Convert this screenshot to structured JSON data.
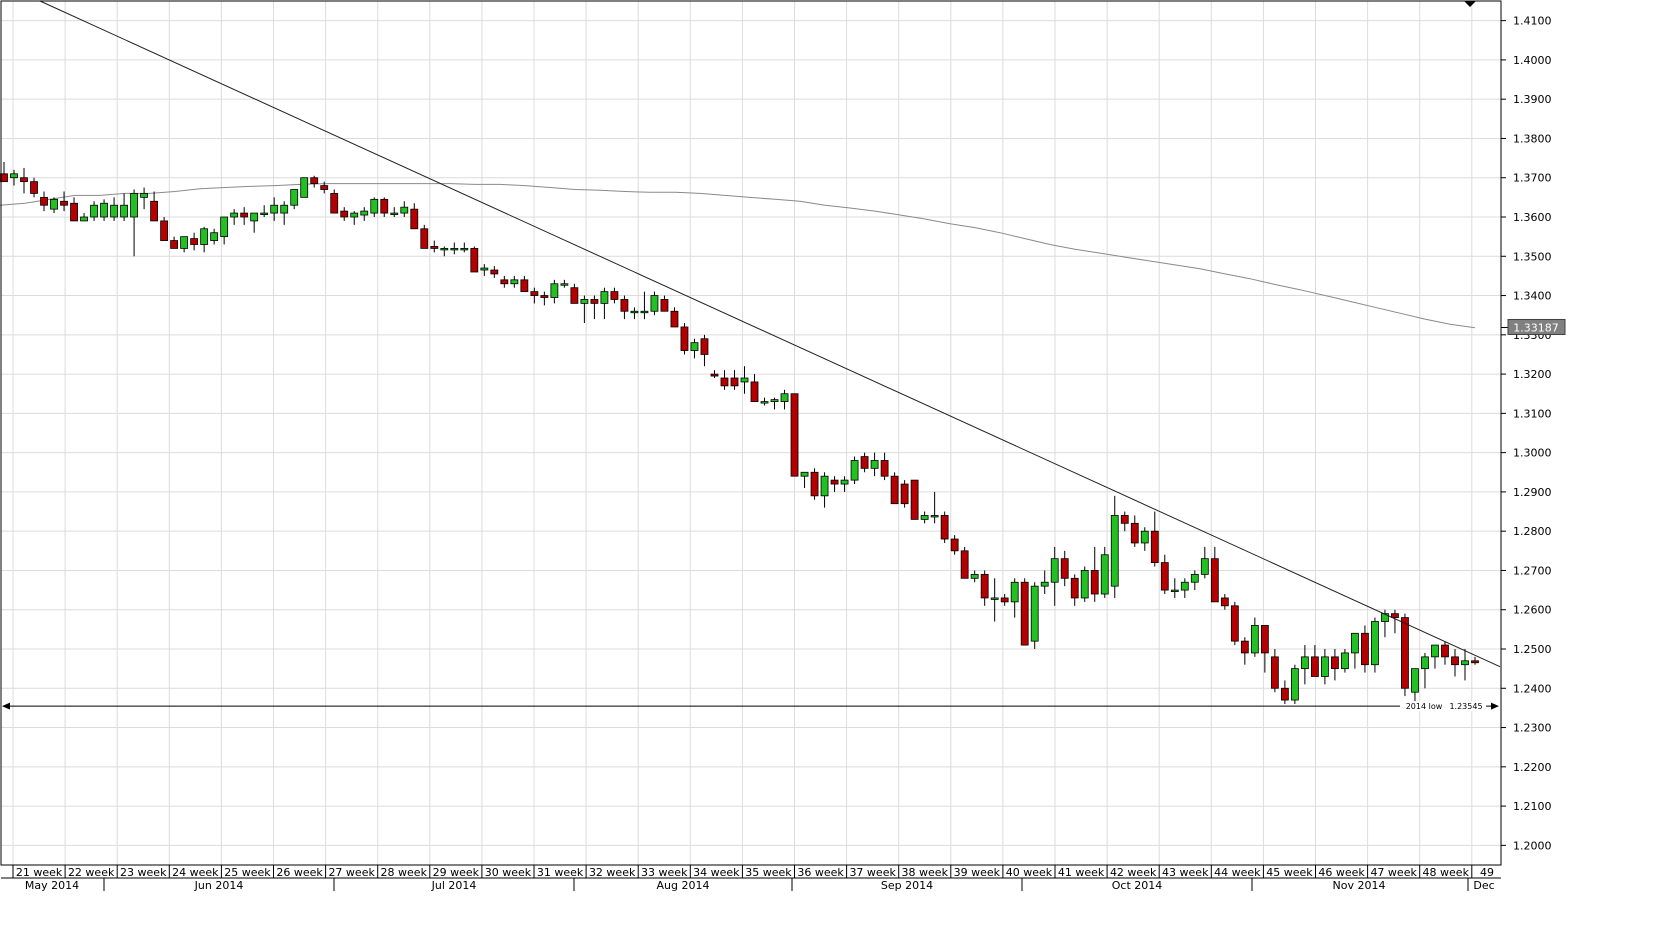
{
  "chart_data": {
    "type": "candlestick",
    "timeframe": "daily",
    "ylim": [
      1.195,
      1.415
    ],
    "yticks": [
      1.41,
      1.4,
      1.39,
      1.38,
      1.37,
      1.36,
      1.35,
      1.34,
      1.33,
      1.32,
      1.31,
      1.3,
      1.29,
      1.28,
      1.27,
      1.26,
      1.25,
      1.24,
      1.23,
      1.22,
      1.21,
      1.2
    ],
    "ytick_labels": [
      "1.4100",
      "1.4000",
      "1.3900",
      "1.3800",
      "1.3700",
      "1.3600",
      "1.3500",
      "1.3400",
      "1.3300",
      "1.3200",
      "1.3100",
      "1.3000",
      "1.2900",
      "1.2800",
      "1.2700",
      "1.2600",
      "1.2500",
      "1.2400",
      "1.2300",
      "1.2200",
      "1.2100",
      "1.2000"
    ],
    "week_labels": [
      "21 week",
      "22 week",
      "23 week",
      "24 week",
      "25 week",
      "26 week",
      "27 week",
      "28 week",
      "29 week",
      "30 week",
      "31 week",
      "32 week",
      "33 week",
      "34 week",
      "35 week",
      "36 week",
      "37 week",
      "38 week",
      "39 week",
      "40 week",
      "41 week",
      "42 week",
      "43 week",
      "44 week",
      "45 week",
      "46 week",
      "47 week",
      "48 week",
      "49"
    ],
    "month_labels": [
      "May 2014",
      "Jun 2014",
      "Jul 2014",
      "Aug 2014",
      "Sep 2014",
      "Oct 2014",
      "Nov 2014",
      "Dec"
    ],
    "candles": [
      [
        1.371,
        1.374,
        1.369,
        1.369
      ],
      [
        1.37,
        1.372,
        1.368,
        1.371
      ],
      [
        1.37,
        1.3725,
        1.366,
        1.369
      ],
      [
        1.369,
        1.37,
        1.365,
        1.366
      ],
      [
        1.365,
        1.3665,
        1.3615,
        1.363
      ],
      [
        1.362,
        1.365,
        1.361,
        1.3645
      ],
      [
        1.364,
        1.3665,
        1.3615,
        1.363
      ],
      [
        1.3635,
        1.365,
        1.359,
        1.359
      ],
      [
        1.359,
        1.361,
        1.359,
        1.36
      ],
      [
        1.36,
        1.364,
        1.359,
        1.363
      ],
      [
        1.36,
        1.3645,
        1.359,
        1.3635
      ],
      [
        1.36,
        1.365,
        1.359,
        1.363
      ],
      [
        1.36,
        1.366,
        1.359,
        1.363
      ],
      [
        1.36,
        1.367,
        1.35,
        1.366
      ],
      [
        1.365,
        1.3675,
        1.362,
        1.366
      ],
      [
        1.364,
        1.3665,
        1.359,
        1.359
      ],
      [
        1.359,
        1.36,
        1.354,
        1.354
      ],
      [
        1.354,
        1.355,
        1.352,
        1.352
      ],
      [
        1.352,
        1.355,
        1.351,
        1.355
      ],
      [
        1.3545,
        1.356,
        1.3515,
        1.353
      ],
      [
        1.353,
        1.3575,
        1.351,
        1.357
      ],
      [
        1.354,
        1.357,
        1.353,
        1.356
      ],
      [
        1.355,
        1.36,
        1.353,
        1.36
      ],
      [
        1.36,
        1.362,
        1.358,
        1.361
      ],
      [
        1.361,
        1.3625,
        1.358,
        1.36
      ],
      [
        1.359,
        1.361,
        1.356,
        1.361
      ],
      [
        1.361,
        1.363,
        1.36,
        1.361
      ],
      [
        1.361,
        1.365,
        1.359,
        1.363
      ],
      [
        1.361,
        1.364,
        1.358,
        1.363
      ],
      [
        1.363,
        1.366,
        1.362,
        1.367
      ],
      [
        1.365,
        1.37,
        1.365,
        1.37
      ],
      [
        1.37,
        1.3705,
        1.3675,
        1.3685
      ],
      [
        1.368,
        1.369,
        1.366,
        1.367
      ],
      [
        1.366,
        1.367,
        1.361,
        1.361
      ],
      [
        1.3615,
        1.3625,
        1.359,
        1.36
      ],
      [
        1.36,
        1.3615,
        1.358,
        1.361
      ],
      [
        1.3605,
        1.3625,
        1.359,
        1.3615
      ],
      [
        1.361,
        1.365,
        1.36,
        1.3645
      ],
      [
        1.3645,
        1.365,
        1.36,
        1.361
      ],
      [
        1.361,
        1.3625,
        1.36,
        1.361
      ],
      [
        1.361,
        1.364,
        1.36,
        1.3625
      ],
      [
        1.362,
        1.3635,
        1.357,
        1.357
      ],
      [
        1.357,
        1.358,
        1.352,
        1.352
      ],
      [
        1.3525,
        1.354,
        1.351,
        1.352
      ],
      [
        1.352,
        1.3525,
        1.35,
        1.352
      ],
      [
        1.352,
        1.3535,
        1.3505,
        1.352
      ],
      [
        1.352,
        1.3535,
        1.351,
        1.352
      ],
      [
        1.352,
        1.3525,
        1.346,
        1.346
      ],
      [
        1.3465,
        1.348,
        1.345,
        1.347
      ],
      [
        1.3465,
        1.3475,
        1.3445,
        1.3455
      ],
      [
        1.344,
        1.345,
        1.342,
        1.343
      ],
      [
        1.343,
        1.345,
        1.342,
        1.344
      ],
      [
        1.344,
        1.345,
        1.341,
        1.341
      ],
      [
        1.341,
        1.342,
        1.338,
        1.34
      ],
      [
        1.34,
        1.341,
        1.3375,
        1.3395
      ],
      [
        1.3395,
        1.344,
        1.338,
        1.343
      ],
      [
        1.343,
        1.344,
        1.342,
        1.343
      ],
      [
        1.342,
        1.343,
        1.338,
        1.338
      ],
      [
        1.338,
        1.34,
        1.333,
        1.339
      ],
      [
        1.339,
        1.34,
        1.334,
        1.338
      ],
      [
        1.338,
        1.342,
        1.334,
        1.341
      ],
      [
        1.341,
        1.342,
        1.338,
        1.339
      ],
      [
        1.339,
        1.34,
        1.334,
        1.336
      ],
      [
        1.336,
        1.337,
        1.334,
        1.336
      ],
      [
        1.336,
        1.341,
        1.334,
        1.336
      ],
      [
        1.336,
        1.341,
        1.335,
        1.34
      ],
      [
        1.339,
        1.34,
        1.336,
        1.336
      ],
      [
        1.336,
        1.337,
        1.332,
        1.332
      ],
      [
        1.332,
        1.333,
        1.325,
        1.326
      ],
      [
        1.326,
        1.329,
        1.324,
        1.328
      ],
      [
        1.329,
        1.33,
        1.322,
        1.325
      ],
      [
        1.32,
        1.321,
        1.319,
        1.3195
      ],
      [
        1.319,
        1.321,
        1.316,
        1.317
      ],
      [
        1.319,
        1.321,
        1.316,
        1.317
      ],
      [
        1.318,
        1.322,
        1.315,
        1.319
      ],
      [
        1.318,
        1.32,
        1.313,
        1.313
      ],
      [
        1.313,
        1.314,
        1.312,
        1.313
      ],
      [
        1.313,
        1.314,
        1.311,
        1.3135
      ],
      [
        1.313,
        1.316,
        1.311,
        1.315
      ],
      [
        1.315,
        1.315,
        1.294,
        1.294
      ],
      [
        1.294,
        1.295,
        1.291,
        1.295
      ],
      [
        1.295,
        1.296,
        1.288,
        1.289
      ],
      [
        1.289,
        1.295,
        1.286,
        1.294
      ],
      [
        1.293,
        1.294,
        1.29,
        1.292
      ],
      [
        1.292,
        1.294,
        1.29,
        1.293
      ],
      [
        1.293,
        1.299,
        1.292,
        1.298
      ],
      [
        1.299,
        1.3,
        1.295,
        1.296
      ],
      [
        1.296,
        1.3,
        1.294,
        1.298
      ],
      [
        1.298,
        1.3,
        1.293,
        1.294
      ],
      [
        1.294,
        1.295,
        1.287,
        1.287
      ],
      [
        1.292,
        1.293,
        1.286,
        1.287
      ],
      [
        1.293,
        1.293,
        1.283,
        1.283
      ],
      [
        1.283,
        1.285,
        1.282,
        1.284
      ],
      [
        1.284,
        1.29,
        1.282,
        1.284
      ],
      [
        1.284,
        1.285,
        1.277,
        1.278
      ],
      [
        1.278,
        1.279,
        1.274,
        1.275
      ],
      [
        1.275,
        1.276,
        1.268,
        1.268
      ],
      [
        1.268,
        1.27,
        1.267,
        1.269
      ],
      [
        1.269,
        1.27,
        1.261,
        1.263
      ],
      [
        1.263,
        1.268,
        1.257,
        1.263
      ],
      [
        1.263,
        1.264,
        1.261,
        1.262
      ],
      [
        1.262,
        1.268,
        1.258,
        1.267
      ],
      [
        1.267,
        1.268,
        1.251,
        1.251
      ],
      [
        1.252,
        1.267,
        1.25,
        1.266
      ],
      [
        1.266,
        1.27,
        1.264,
        1.267
      ],
      [
        1.267,
        1.276,
        1.261,
        1.273
      ],
      [
        1.273,
        1.275,
        1.266,
        1.268
      ],
      [
        1.268,
        1.269,
        1.261,
        1.263
      ],
      [
        1.263,
        1.271,
        1.262,
        1.27
      ],
      [
        1.27,
        1.276,
        1.262,
        1.264
      ],
      [
        1.264,
        1.276,
        1.263,
        1.274
      ],
      [
        1.266,
        1.289,
        1.263,
        1.284
      ],
      [
        1.284,
        1.285,
        1.28,
        1.282
      ],
      [
        1.282,
        1.284,
        1.276,
        1.277
      ],
      [
        1.277,
        1.281,
        1.275,
        1.28
      ],
      [
        1.28,
        1.285,
        1.271,
        1.272
      ],
      [
        1.272,
        1.274,
        1.264,
        1.265
      ],
      [
        1.265,
        1.268,
        1.263,
        1.265
      ],
      [
        1.265,
        1.268,
        1.263,
        1.267
      ],
      [
        1.267,
        1.27,
        1.265,
        1.269
      ],
      [
        1.269,
        1.276,
        1.268,
        1.273
      ],
      [
        1.273,
        1.276,
        1.262,
        1.262
      ],
      [
        1.263,
        1.264,
        1.26,
        1.261
      ],
      [
        1.261,
        1.262,
        1.251,
        1.252
      ],
      [
        1.252,
        1.253,
        1.246,
        1.249
      ],
      [
        1.249,
        1.258,
        1.248,
        1.256
      ],
      [
        1.256,
        1.256,
        1.244,
        1.249
      ],
      [
        1.248,
        1.25,
        1.239,
        1.24
      ],
      [
        1.24,
        1.242,
        1.236,
        1.237
      ],
      [
        1.237,
        1.246,
        1.236,
        1.245
      ],
      [
        1.245,
        1.251,
        1.241,
        1.248
      ],
      [
        1.248,
        1.251,
        1.243,
        1.243
      ],
      [
        1.243,
        1.25,
        1.241,
        1.248
      ],
      [
        1.248,
        1.25,
        1.242,
        1.245
      ],
      [
        1.245,
        1.25,
        1.244,
        1.249
      ],
      [
        1.249,
        1.254,
        1.245,
        1.254
      ],
      [
        1.254,
        1.256,
        1.244,
        1.246
      ],
      [
        1.246,
        1.258,
        1.244,
        1.257
      ],
      [
        1.257,
        1.26,
        1.253,
        1.259
      ],
      [
        1.259,
        1.26,
        1.254,
        1.258
      ],
      [
        1.258,
        1.259,
        1.238,
        1.24
      ],
      [
        1.239,
        1.245,
        1.236,
        1.245
      ],
      [
        1.245,
        1.249,
        1.24,
        1.248
      ],
      [
        1.248,
        1.25,
        1.245,
        1.251
      ],
      [
        1.251,
        1.252,
        1.246,
        1.248
      ],
      [
        1.248,
        1.25,
        1.243,
        1.246
      ],
      [
        1.246,
        1.25,
        1.242,
        1.247
      ],
      [
        1.247,
        1.248,
        1.246,
        1.2465
      ]
    ],
    "moving_average": [
      [
        0,
        1.363
      ],
      [
        25,
        1.3635
      ],
      [
        50,
        1.3645
      ],
      [
        75,
        1.3655
      ],
      [
        100,
        1.3655
      ],
      [
        125,
        1.366
      ],
      [
        150,
        1.366
      ],
      [
        175,
        1.3665
      ],
      [
        200,
        1.3672
      ],
      [
        225,
        1.3675
      ],
      [
        250,
        1.3678
      ],
      [
        275,
        1.368
      ],
      [
        300,
        1.3683
      ],
      [
        325,
        1.3685
      ],
      [
        350,
        1.3685
      ],
      [
        375,
        1.3685
      ],
      [
        400,
        1.3685
      ],
      [
        425,
        1.3685
      ],
      [
        450,
        1.3685
      ],
      [
        475,
        1.3683
      ],
      [
        500,
        1.3683
      ],
      [
        525,
        1.368
      ],
      [
        550,
        1.3675
      ],
      [
        575,
        1.367
      ],
      [
        600,
        1.3668
      ],
      [
        625,
        1.3665
      ],
      [
        650,
        1.3663
      ],
      [
        675,
        1.3663
      ],
      [
        700,
        1.366
      ],
      [
        725,
        1.3655
      ],
      [
        750,
        1.365
      ],
      [
        775,
        1.3645
      ],
      [
        800,
        1.364
      ],
      [
        825,
        1.363
      ],
      [
        850,
        1.3623
      ],
      [
        875,
        1.3615
      ],
      [
        900,
        1.3605
      ],
      [
        925,
        1.3595
      ],
      [
        950,
        1.3583
      ],
      [
        975,
        1.3573
      ],
      [
        1000,
        1.356
      ],
      [
        1025,
        1.3545
      ],
      [
        1050,
        1.353
      ],
      [
        1075,
        1.3518
      ],
      [
        1100,
        1.3508
      ],
      [
        1125,
        1.3498
      ],
      [
        1150,
        1.3488
      ],
      [
        1175,
        1.3478
      ],
      [
        1200,
        1.3468
      ],
      [
        1225,
        1.3455
      ],
      [
        1250,
        1.3443
      ],
      [
        1275,
        1.3428
      ],
      [
        1300,
        1.3415
      ],
      [
        1325,
        1.34
      ],
      [
        1350,
        1.3385
      ],
      [
        1375,
        1.337
      ],
      [
        1400,
        1.3355
      ],
      [
        1425,
        1.334
      ],
      [
        1450,
        1.3327
      ],
      [
        1475,
        1.3318
      ]
    ],
    "trendline": {
      "from": [
        40,
        1.415
      ],
      "to": [
        1500,
        1.2455
      ]
    },
    "support": {
      "level": 1.23545,
      "label": "2014 low",
      "value_label": "1.23545"
    },
    "price_tag": {
      "value": 1.33187,
      "label": "1.33187"
    },
    "colors": {
      "bullish": "#22c022",
      "bearish": "#b40000",
      "grid": "#dcdcdc",
      "line": "#202020",
      "ma": "#8a8a8a"
    }
  }
}
